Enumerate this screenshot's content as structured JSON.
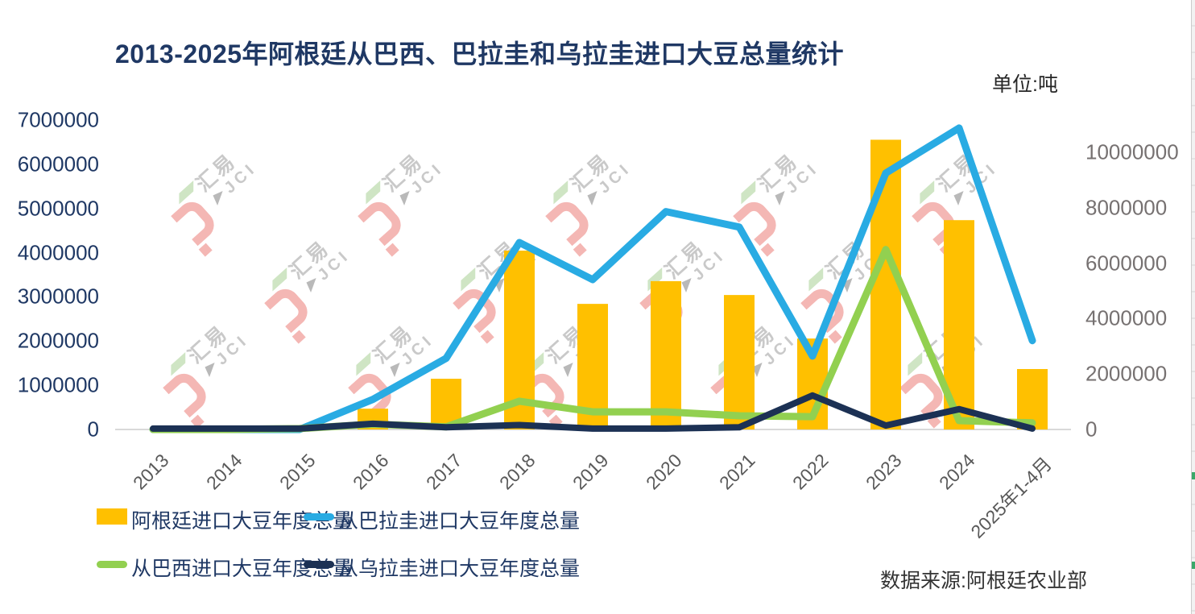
{
  "title": "2013-2025年阿根廷从巴西、巴拉圭和乌拉圭进口大豆总量统计",
  "unit_label": "单位:吨",
  "source_label": "数据来源:阿根廷农业部",
  "watermark": {
    "text_cn": "汇易",
    "text_en": "JCI"
  },
  "colors": {
    "title": "#1F3864",
    "left_axis_labels": "#1F3864",
    "right_axis_labels": "#767171",
    "x_axis_labels": "#595959",
    "axis_line": "#D9D9D9",
    "bar": "#FFC000",
    "paraguay_line": "#29ABE3",
    "brazil_line": "#92D050",
    "uruguay_line": "#1C3154"
  },
  "legend": {
    "items": [
      {
        "label": "阿根廷进口大豆年度总量",
        "type": "bar",
        "color": "#FFC000"
      },
      {
        "label": "从巴拉圭进口大豆年度总量",
        "type": "line",
        "color": "#29ABE3"
      },
      {
        "label": "从巴西进口大豆年度总量",
        "type": "line",
        "color": "#92D050"
      },
      {
        "label": "从乌拉圭进口大豆年度总量",
        "type": "line",
        "color": "#1C3154"
      }
    ]
  },
  "chart_data": {
    "type": "combo",
    "categories": [
      "2013",
      "2014",
      "2015",
      "2016",
      "2017",
      "2018",
      "2019",
      "2020",
      "2021",
      "2022",
      "2023",
      "2024",
      "2025年1-4月"
    ],
    "left_axis": {
      "min": 0,
      "max": 7000000,
      "ticks": [
        0,
        1000000,
        2000000,
        3000000,
        4000000,
        5000000,
        6000000,
        7000000
      ],
      "applies_to": "line series"
    },
    "right_axis": {
      "min": 0,
      "max": 11160000,
      "ticks": [
        0,
        2000000,
        4000000,
        6000000,
        8000000,
        10000000
      ],
      "applies_to": "bar series"
    },
    "grid": false,
    "legend_position": "bottom",
    "series": [
      {
        "name": "阿根廷进口大豆年度总量",
        "type": "bar",
        "axis": "right",
        "color": "#FFC000",
        "values": [
          0,
          0,
          0,
          750000,
          1830000,
          6450000,
          4530000,
          5350000,
          4850000,
          3280000,
          10450000,
          7550000,
          2180000
        ]
      },
      {
        "name": "从巴拉圭进口大豆年度总量",
        "type": "line",
        "axis": "left",
        "color": "#29ABE3",
        "values": [
          0,
          0,
          0,
          680000,
          1610000,
          4230000,
          3390000,
          4930000,
          4580000,
          1660000,
          5800000,
          6820000,
          2010000
        ]
      },
      {
        "name": "从巴西进口大豆年度总量",
        "type": "line",
        "axis": "left",
        "color": "#92D050",
        "values": [
          0,
          0,
          20000,
          120000,
          60000,
          640000,
          400000,
          400000,
          310000,
          290000,
          4070000,
          200000,
          150000
        ]
      },
      {
        "name": "从乌拉圭进口大豆年度总量",
        "type": "line",
        "axis": "left",
        "color": "#1C3154",
        "values": [
          20000,
          20000,
          20000,
          130000,
          50000,
          100000,
          20000,
          20000,
          50000,
          770000,
          90000,
          460000,
          20000
        ]
      }
    ]
  }
}
